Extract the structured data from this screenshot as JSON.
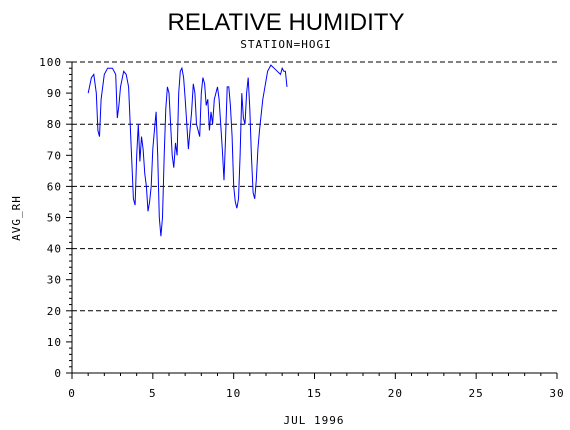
{
  "chart_data": {
    "type": "line",
    "title": "RELATIVE HUMIDITY",
    "subtitle": "STATION=HOGI",
    "xlabel": "JUL 1996",
    "ylabel": "AVG_RH",
    "xlim": [
      0,
      30
    ],
    "ylim": [
      0,
      100
    ],
    "xticks": [
      "0",
      "5",
      "10",
      "15",
      "20",
      "25",
      "30"
    ],
    "yticks": [
      "0",
      "10",
      "20",
      "30",
      "40",
      "50",
      "60",
      "70",
      "80",
      "90",
      "100"
    ],
    "gridlines_y": [
      0,
      20,
      40,
      60,
      80,
      100
    ],
    "grid_style": "dashed",
    "line_color": "#0000ff",
    "series": [
      {
        "x": [
          1.0,
          1.2,
          1.35,
          1.5,
          1.6,
          1.7,
          1.8,
          2.0,
          2.2,
          2.5,
          2.7,
          2.8,
          2.9,
          3.0,
          3.2,
          3.35,
          3.5,
          3.6,
          3.7,
          3.8,
          3.9,
          4.0,
          4.1,
          4.2,
          4.3,
          4.4,
          4.5,
          4.6,
          4.7,
          4.8,
          4.9,
          5.0,
          5.1,
          5.2,
          5.3,
          5.4,
          5.5,
          5.6,
          5.7,
          5.8,
          5.9,
          6.0,
          6.2,
          6.3,
          6.4,
          6.5,
          6.6,
          6.7,
          6.8,
          6.9,
          7.0,
          7.2,
          7.4,
          7.5,
          7.6,
          7.7,
          7.9,
          8.0,
          8.1,
          8.2,
          8.3,
          8.4,
          8.5,
          8.6,
          8.7,
          8.8,
          8.9,
          9.0,
          9.1,
          9.2,
          9.3,
          9.4,
          9.5,
          9.6,
          9.7,
          9.8,
          9.9,
          10.0,
          10.1,
          10.2,
          10.3,
          10.4,
          10.5,
          10.6,
          10.7,
          10.8,
          10.9,
          11.0,
          11.1,
          11.2,
          11.3,
          11.4,
          11.5,
          11.6,
          11.8,
          12.0,
          12.1,
          12.3,
          12.5,
          12.7,
          12.9,
          13.0,
          13.1,
          13.2,
          13.3
        ],
        "y": [
          90,
          95,
          96,
          90,
          78,
          76,
          88,
          96,
          98,
          98,
          96,
          82,
          86,
          92,
          97,
          96,
          92,
          80,
          68,
          56,
          54,
          70,
          80,
          68,
          76,
          72,
          64,
          60,
          52,
          55,
          60,
          72,
          78,
          84,
          70,
          50,
          44,
          50,
          70,
          85,
          92,
          90,
          70,
          66,
          74,
          70,
          90,
          97,
          98,
          95,
          88,
          72,
          84,
          93,
          90,
          80,
          76,
          90,
          95,
          93,
          86,
          88,
          78,
          84,
          80,
          88,
          90,
          92,
          88,
          80,
          72,
          62,
          76,
          92,
          92,
          86,
          76,
          60,
          55,
          53,
          56,
          70,
          90,
          82,
          80,
          90,
          95,
          85,
          70,
          58,
          56,
          62,
          72,
          78,
          88,
          94,
          97,
          99,
          98,
          97,
          96,
          98,
          97,
          97,
          92
        ]
      }
    ]
  }
}
